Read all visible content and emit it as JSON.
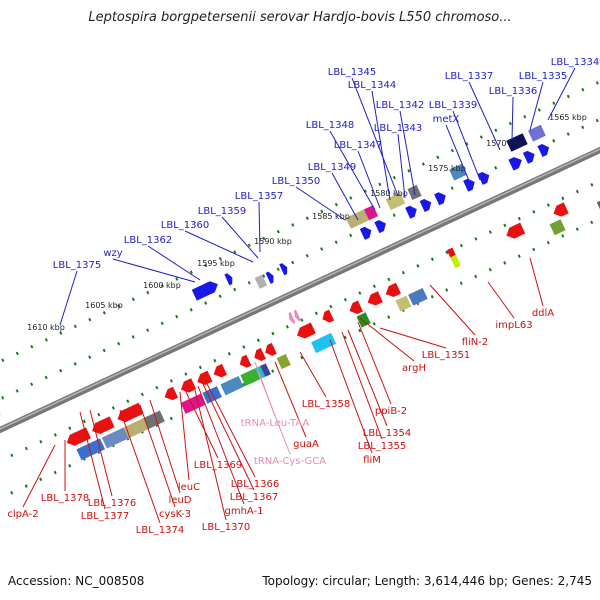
{
  "title": "Leptospira borgpetersenii serovar Hardjo-bovis L550 chromoso...",
  "footer": {
    "accession": "Accession: NC_008508",
    "topology": "Topology: circular; Length: 3,614,446 bp; Genes: 2,745"
  },
  "kbp_ticks": [
    "1565 kbp",
    "1570 kbp",
    "1575 kbp",
    "1580 kbp",
    "1585 kbp",
    "1590 kbp",
    "1595 kbp",
    "1600 kbp",
    "1605 kbp",
    "1610 kbp"
  ],
  "forward_labels": [
    "LBL_1334",
    "LBL_1335",
    "LBL_1336",
    "LBL_1337",
    "LBL_1339",
    "metX",
    "LBL_1342",
    "LBL_1343",
    "LBL_1344",
    "LBL_1345",
    "LBL_1347",
    "LBL_1348",
    "LBL_1349",
    "LBL_1350",
    "LBL_1357",
    "LBL_1359",
    "LBL_1360",
    "LBL_1362",
    "wzy",
    "LBL_1375"
  ],
  "reverse_labels": [
    "ddlA",
    "impL63",
    "fliN-2",
    "LBL_1351",
    "argH",
    "ppiB-2",
    "LBL_1354",
    "LBL_1355",
    "fliM",
    "LBL_1358",
    "guaA",
    "tRNA-Leu-TAA",
    "tRNA-Cys-GCA",
    "LBL_1366",
    "LBL_1367",
    "gmhA-1",
    "LBL_1369",
    "leuC",
    "LBL_1370",
    "leuD",
    "cysK-3",
    "LBL_1374",
    "LBL_1376",
    "LBL_1377",
    "LBL_1378",
    "clpA-2"
  ],
  "colors": {
    "forward": "#1e1ec8",
    "reverse": "#cc1111",
    "trna": "#e88ab8",
    "backbone": "#777777",
    "track": "#1a7a1a"
  }
}
